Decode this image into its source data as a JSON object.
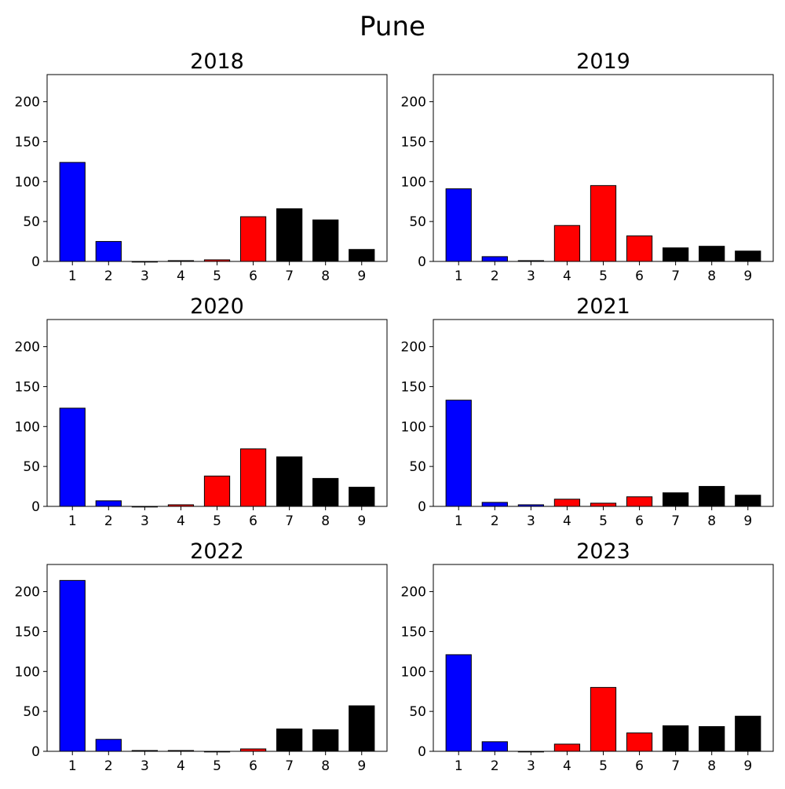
{
  "figure_title": "Pune",
  "colors": {
    "low": "#0000ff",
    "mid": "#ff0000",
    "high": "#000000",
    "edge": "#000000"
  },
  "chart_data": [
    {
      "type": "bar",
      "title": "2018",
      "categories": [
        "1",
        "2",
        "3",
        "4",
        "5",
        "6",
        "7",
        "8",
        "9"
      ],
      "values": [
        124,
        25,
        0,
        1,
        2,
        56,
        66,
        52,
        15
      ],
      "colors": [
        "#0000ff",
        "#0000ff",
        "#0000ff",
        "#ff0000",
        "#ff0000",
        "#ff0000",
        "#000000",
        "#000000",
        "#000000"
      ],
      "ylim": [
        0,
        234
      ],
      "yticks": [
        0,
        50,
        100,
        150,
        200
      ],
      "xlabel": "",
      "ylabel": "",
      "grid": false
    },
    {
      "type": "bar",
      "title": "2019",
      "categories": [
        "1",
        "2",
        "3",
        "4",
        "5",
        "6",
        "7",
        "8",
        "9"
      ],
      "values": [
        91,
        6,
        1,
        45,
        95,
        32,
        17,
        19,
        13
      ],
      "colors": [
        "#0000ff",
        "#0000ff",
        "#0000ff",
        "#ff0000",
        "#ff0000",
        "#ff0000",
        "#000000",
        "#000000",
        "#000000"
      ],
      "ylim": [
        0,
        234
      ],
      "yticks": [
        0,
        50,
        100,
        150,
        200
      ],
      "xlabel": "",
      "ylabel": "",
      "grid": false
    },
    {
      "type": "bar",
      "title": "2020",
      "categories": [
        "1",
        "2",
        "3",
        "4",
        "5",
        "6",
        "7",
        "8",
        "9"
      ],
      "values": [
        123,
        7,
        0,
        2,
        38,
        72,
        62,
        35,
        24
      ],
      "colors": [
        "#0000ff",
        "#0000ff",
        "#0000ff",
        "#ff0000",
        "#ff0000",
        "#ff0000",
        "#000000",
        "#000000",
        "#000000"
      ],
      "ylim": [
        0,
        234
      ],
      "yticks": [
        0,
        50,
        100,
        150,
        200
      ],
      "xlabel": "",
      "ylabel": "",
      "grid": false
    },
    {
      "type": "bar",
      "title": "2021",
      "categories": [
        "1",
        "2",
        "3",
        "4",
        "5",
        "6",
        "7",
        "8",
        "9"
      ],
      "values": [
        133,
        5,
        2,
        9,
        4,
        12,
        17,
        25,
        14
      ],
      "colors": [
        "#0000ff",
        "#0000ff",
        "#0000ff",
        "#ff0000",
        "#ff0000",
        "#ff0000",
        "#000000",
        "#000000",
        "#000000"
      ],
      "ylim": [
        0,
        234
      ],
      "yticks": [
        0,
        50,
        100,
        150,
        200
      ],
      "xlabel": "",
      "ylabel": "",
      "grid": false
    },
    {
      "type": "bar",
      "title": "2022",
      "categories": [
        "1",
        "2",
        "3",
        "4",
        "5",
        "6",
        "7",
        "8",
        "9"
      ],
      "values": [
        214,
        15,
        1,
        1,
        0,
        3,
        28,
        27,
        57
      ],
      "colors": [
        "#0000ff",
        "#0000ff",
        "#0000ff",
        "#ff0000",
        "#ff0000",
        "#ff0000",
        "#000000",
        "#000000",
        "#000000"
      ],
      "ylim": [
        0,
        234
      ],
      "yticks": [
        0,
        50,
        100,
        150,
        200
      ],
      "xlabel": "",
      "ylabel": "",
      "grid": false
    },
    {
      "type": "bar",
      "title": "2023",
      "categories": [
        "1",
        "2",
        "3",
        "4",
        "5",
        "6",
        "7",
        "8",
        "9"
      ],
      "values": [
        121,
        12,
        0,
        9,
        80,
        23,
        32,
        31,
        44
      ],
      "colors": [
        "#0000ff",
        "#0000ff",
        "#0000ff",
        "#ff0000",
        "#ff0000",
        "#ff0000",
        "#000000",
        "#000000",
        "#000000"
      ],
      "ylim": [
        0,
        234
      ],
      "yticks": [
        0,
        50,
        100,
        150,
        200
      ],
      "xlabel": "",
      "ylabel": "",
      "grid": false
    }
  ]
}
